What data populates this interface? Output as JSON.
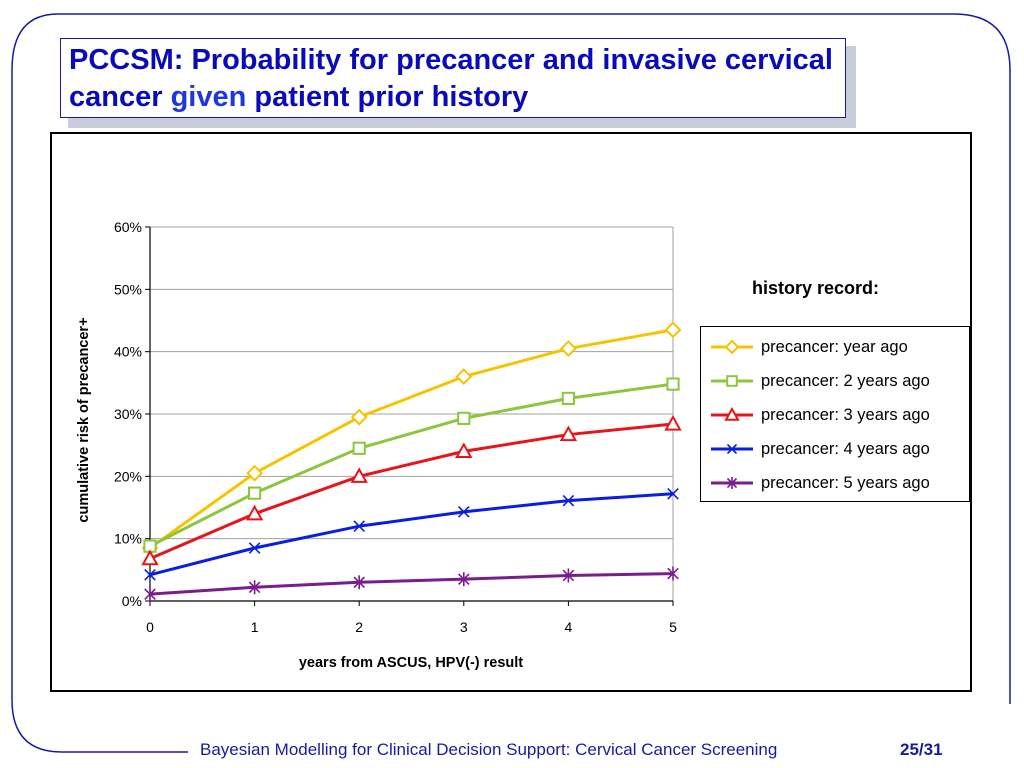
{
  "slide": {
    "title_part1": "PCCSM: Probability for precancer and invasive cervical cancer ",
    "title_given": "given",
    "title_part2": " patient prior history",
    "footer": "Bayesian Modelling for Clinical Decision Support: Cervical Cancer Screening",
    "page": "25/31",
    "colors": {
      "title": "#0a0ab8",
      "frame": "#1a1aa0"
    }
  },
  "chart_data": {
    "type": "line",
    "title": "",
    "xlabel": "years from ASCUS, HPV(-) result",
    "ylabel": "cumulative risk of precancer+",
    "x": [
      0,
      1,
      2,
      3,
      4,
      5
    ],
    "xlim": [
      0,
      5
    ],
    "ylim": [
      0,
      60
    ],
    "y_ticks": [
      "0%",
      "10%",
      "20%",
      "30%",
      "40%",
      "50%",
      "60%"
    ],
    "x_ticks": [
      "0",
      "1",
      "2",
      "3",
      "4",
      "5"
    ],
    "grid": true,
    "legend_title": "history record:",
    "legend_position": "right",
    "series": [
      {
        "name": "precancer: year ago",
        "color": "#f5c400",
        "marker": "diamond",
        "values": [
          8.5,
          20.5,
          29.5,
          36.0,
          40.5,
          43.5
        ]
      },
      {
        "name": "precancer: 2 years ago",
        "color": "#8cc63f",
        "marker": "square",
        "values": [
          8.8,
          17.3,
          24.5,
          29.3,
          32.5,
          34.8
        ]
      },
      {
        "name": "precancer: 3 years ago",
        "color": "#e8141b",
        "marker": "triangle",
        "values": [
          6.8,
          14.0,
          20.0,
          24.0,
          26.7,
          28.4
        ]
      },
      {
        "name": "precancer: 4 years ago",
        "color": "#0a1ee0",
        "marker": "x",
        "values": [
          4.2,
          8.5,
          12.0,
          14.3,
          16.1,
          17.2
        ]
      },
      {
        "name": "precancer: 5 years ago",
        "color": "#7a1d8c",
        "marker": "star",
        "values": [
          1.1,
          2.2,
          3.0,
          3.5,
          4.1,
          4.4
        ]
      }
    ]
  }
}
